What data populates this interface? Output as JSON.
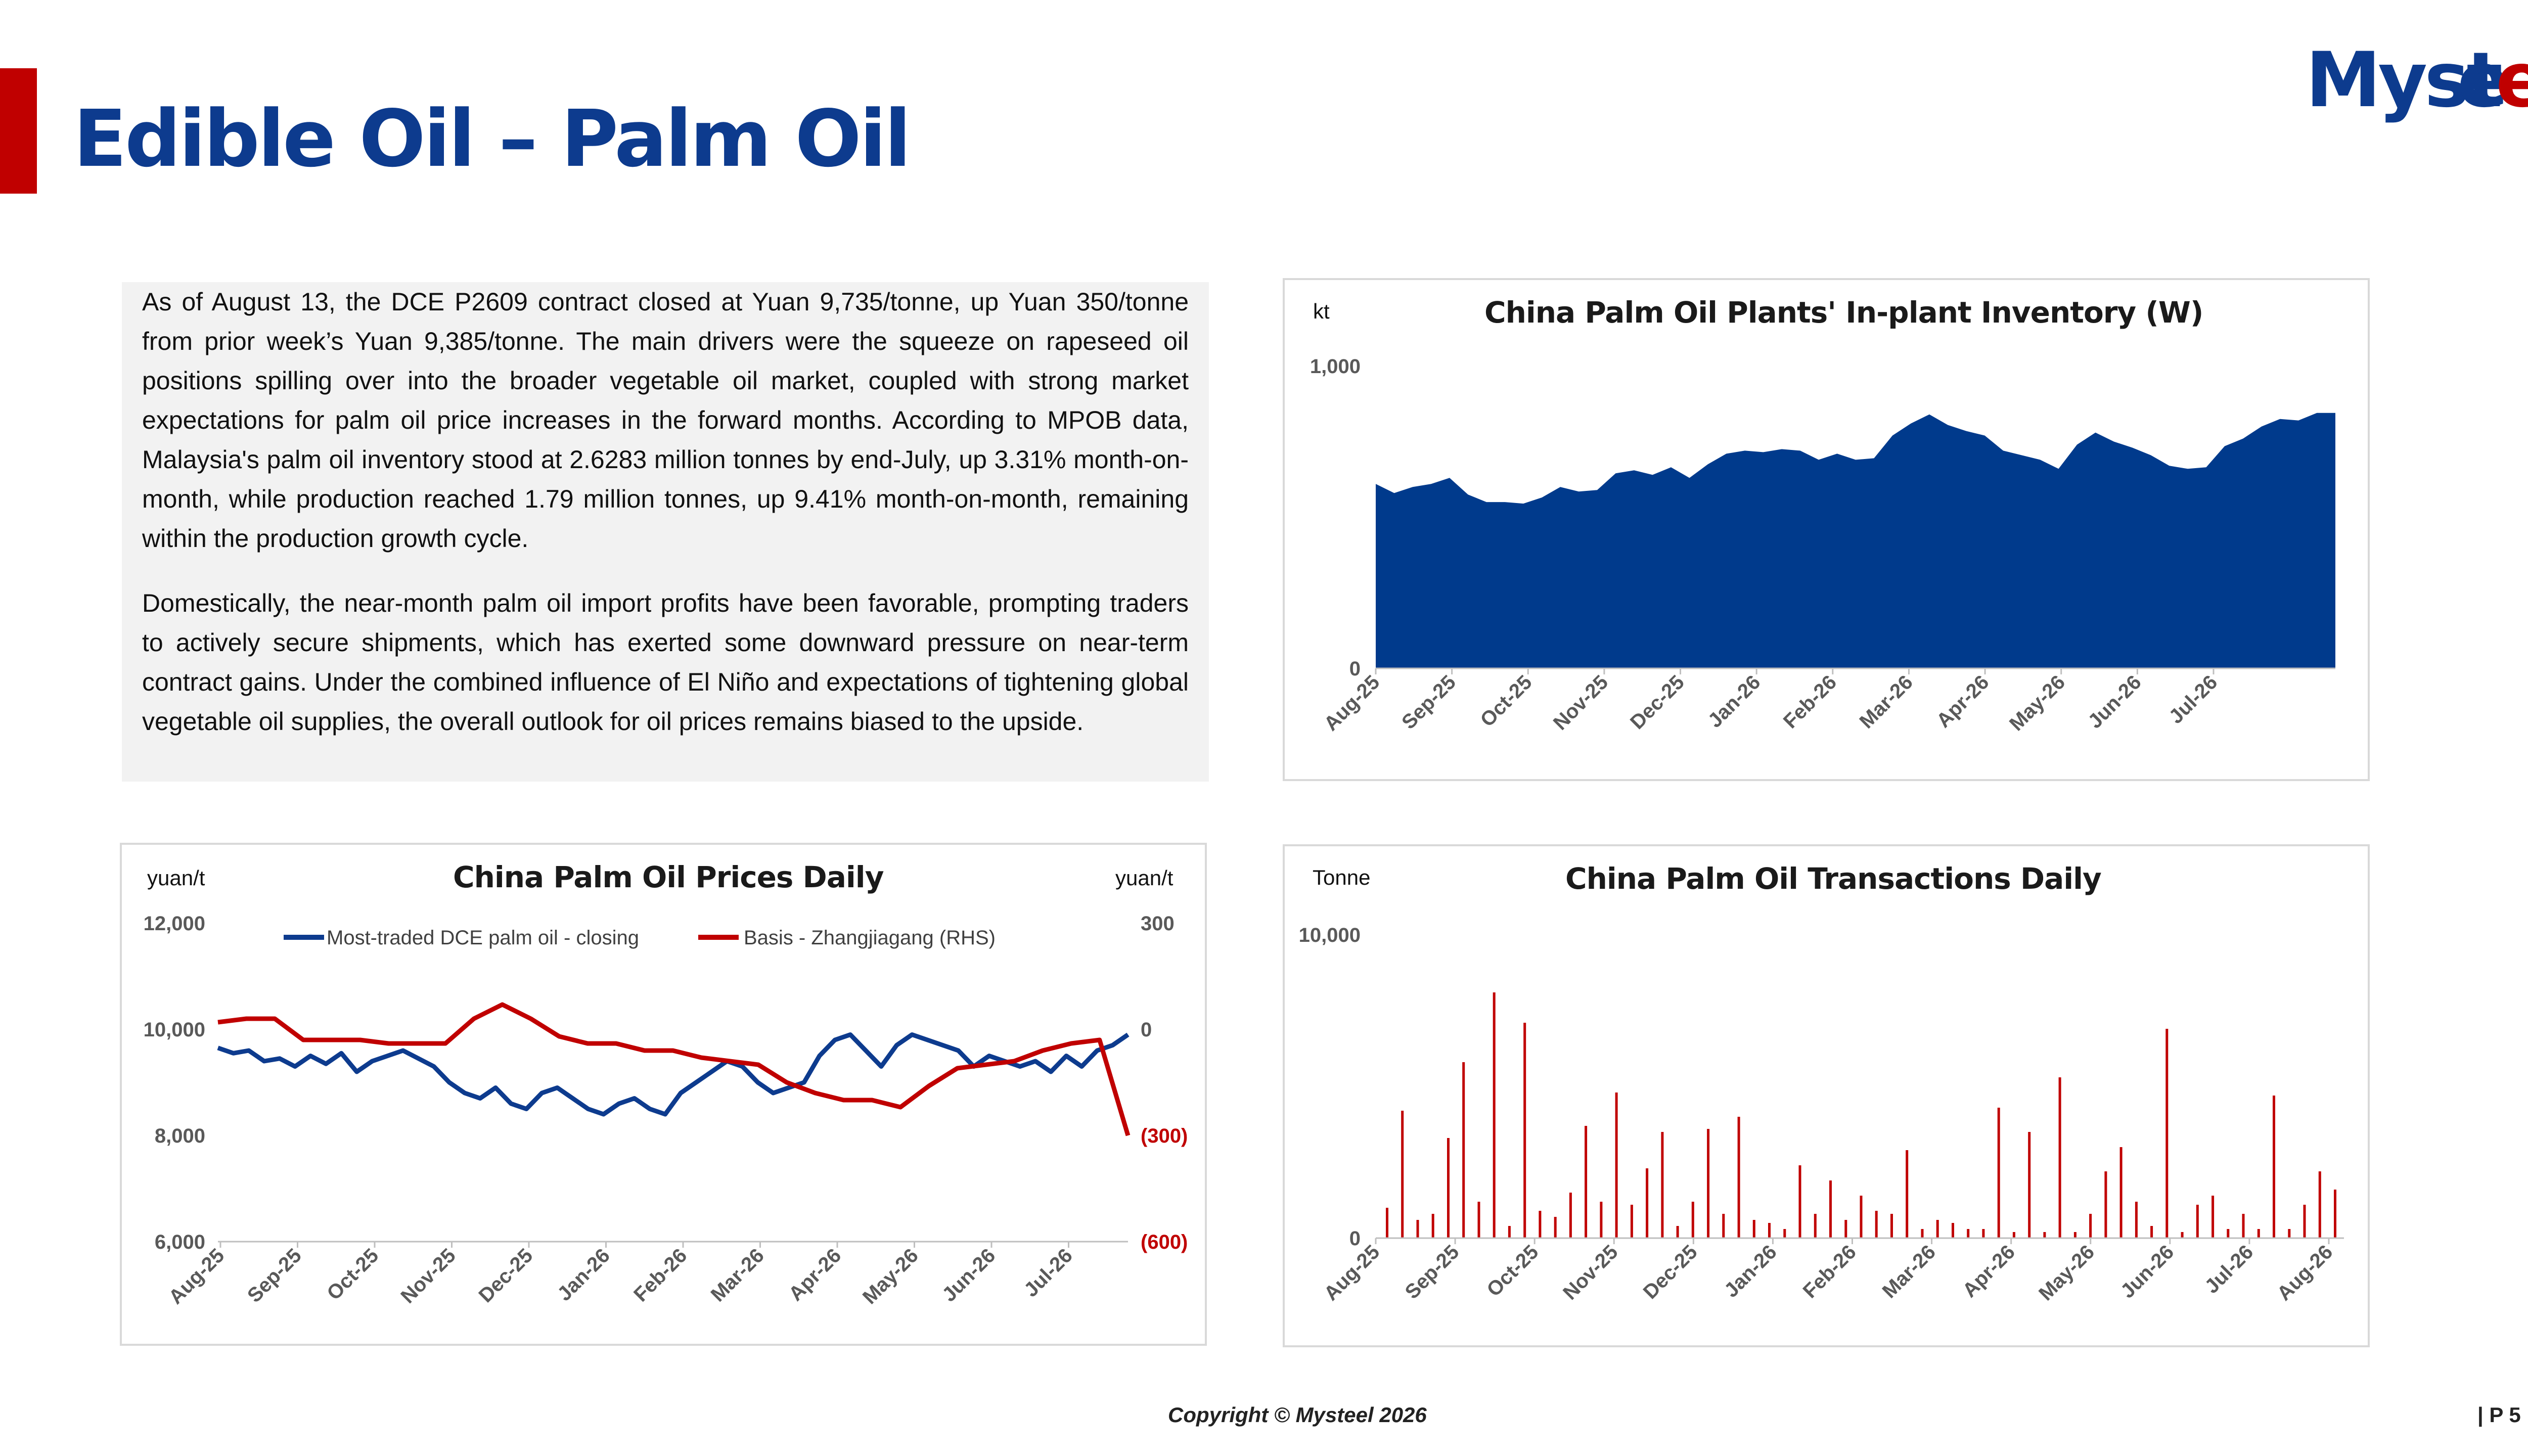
{
  "page": {
    "title": "Edible Oil – Palm Oil",
    "logo_text": "Mysteel",
    "copyright": "Copyright © Mysteel 2026",
    "page_number": "| P 5"
  },
  "summary": {
    "paragraph1": "As of August 13, the DCE P2609 contract closed at Yuan 9,735/tonne, up Yuan 350/tonne from prior week’s Yuan 9,385/tonne. The main drivers were the squeeze on rapeseed oil positions spilling over into the broader vegetable oil market, coupled with strong market expectations for palm oil price increases in the forward months. According to MPOB data, Malaysia's palm oil inventory stood at 2.6283 million tonnes by end-July, up 3.31% month-on-month, while production reached 1.79 million tonnes, up 9.41% month-on-month, remaining within the production growth cycle.",
    "paragraph2": "Domestically, the near-month palm oil import profits have been favorable, prompting traders to actively secure shipments, which has exerted some downward pressure on near-term contract gains. Under the combined influence of El Niño and expectations of tightening global vegetable oil supplies, the overall outlook for oil prices remains biased to the upside."
  },
  "chart_data": [
    {
      "id": "inventory",
      "type": "area",
      "title": "China Palm Oil Plants' In-plant Inventory (W)",
      "ylabel": "kt",
      "ylim": [
        0,
        1000
      ],
      "yticks": [
        "1,000",
        "0"
      ],
      "xticks": [
        "Aug-25",
        "Sep-25",
        "Oct-25",
        "Nov-25",
        "Dec-25",
        "Jan-26",
        "Feb-26",
        "Mar-26",
        "Apr-26",
        "May-26",
        "Jun-26",
        "Jul-26"
      ],
      "color": "#003a8c",
      "values": [
        610,
        580,
        600,
        610,
        630,
        575,
        550,
        550,
        545,
        565,
        600,
        585,
        590,
        645,
        655,
        640,
        665,
        630,
        675,
        710,
        720,
        715,
        725,
        720,
        690,
        710,
        690,
        695,
        770,
        810,
        840,
        805,
        785,
        770,
        720,
        705,
        690,
        660,
        740,
        780,
        750,
        730,
        705,
        670,
        660,
        665,
        735,
        760,
        800,
        825,
        820,
        845,
        845
      ]
    },
    {
      "id": "prices",
      "type": "line",
      "title": "China Palm Oil Prices Daily",
      "ylabel_left": "yuan/t",
      "ylabel_right": "yuan/t",
      "ylim_left": [
        6000,
        12000
      ],
      "ylim_right": [
        -600,
        300
      ],
      "yticks_left": [
        "12,000",
        "10,000",
        "8,000",
        "6,000"
      ],
      "yticks_right": [
        "300",
        "0",
        "(300)",
        "(600)"
      ],
      "xticks": [
        "Aug-25",
        "Sep-25",
        "Oct-25",
        "Nov-25",
        "Dec-25",
        "Jan-26",
        "Feb-26",
        "Mar-26",
        "Apr-26",
        "May-26",
        "Jun-26",
        "Jul-26"
      ],
      "series": [
        {
          "name": "Most-traded DCE palm oil - closing",
          "color": "#0d3b8e",
          "axis": "left",
          "values": [
            9650,
            9550,
            9600,
            9400,
            9450,
            9300,
            9500,
            9350,
            9550,
            9200,
            9400,
            9500,
            9600,
            9450,
            9300,
            9000,
            8800,
            8700,
            8900,
            8600,
            8500,
            8800,
            8900,
            8700,
            8500,
            8400,
            8600,
            8700,
            8500,
            8400,
            8800,
            9000,
            9200,
            9400,
            9300,
            9000,
            8800,
            8900,
            9000,
            9500,
            9800,
            9900,
            9600,
            9300,
            9700,
            9900,
            9800,
            9700,
            9600,
            9300,
            9500,
            9400,
            9300,
            9400,
            9200,
            9500,
            9300,
            9600,
            9700,
            9900
          ]
        },
        {
          "name": "Basis - Zhangjiagang (RHS)",
          "color": "#c00000",
          "axis": "right",
          "values": [
            20,
            30,
            30,
            -30,
            -30,
            -30,
            -40,
            -40,
            -40,
            30,
            70,
            30,
            -20,
            -40,
            -40,
            -60,
            -60,
            -80,
            -90,
            -100,
            -150,
            -180,
            -200,
            -200,
            -220,
            -160,
            -110,
            -100,
            -90,
            -60,
            -40,
            -30,
            -300
          ]
        }
      ]
    },
    {
      "id": "transactions",
      "type": "bar",
      "title": "China Palm Oil Transactions Daily",
      "ylabel": "Tonne",
      "ylim": [
        0,
        10000
      ],
      "yticks": [
        "10,000",
        "0"
      ],
      "xticks": [
        "Aug-25",
        "Sep-25",
        "Oct-25",
        "Nov-25",
        "Dec-25",
        "Jan-26",
        "Feb-26",
        "Mar-26",
        "Apr-26",
        "May-26",
        "Jun-26",
        "Jul-26",
        "Aug-26"
      ],
      "color": "#c00000",
      "values": [
        1000,
        4200,
        600,
        800,
        3300,
        5800,
        1200,
        8100,
        400,
        7100,
        900,
        700,
        1500,
        3700,
        1200,
        4800,
        1100,
        2300,
        3500,
        400,
        1200,
        3600,
        800,
        4000,
        600,
        500,
        300,
        2400,
        800,
        1900,
        600,
        1400,
        900,
        800,
        2900,
        300,
        600,
        500,
        300,
        300,
        4300,
        200,
        3500,
        200,
        5300,
        200,
        800,
        2200,
        3000,
        1200,
        400,
        6900,
        200,
        1100,
        1400,
        300,
        800,
        300,
        4700,
        300,
        1100,
        2200,
        1600
      ]
    }
  ]
}
